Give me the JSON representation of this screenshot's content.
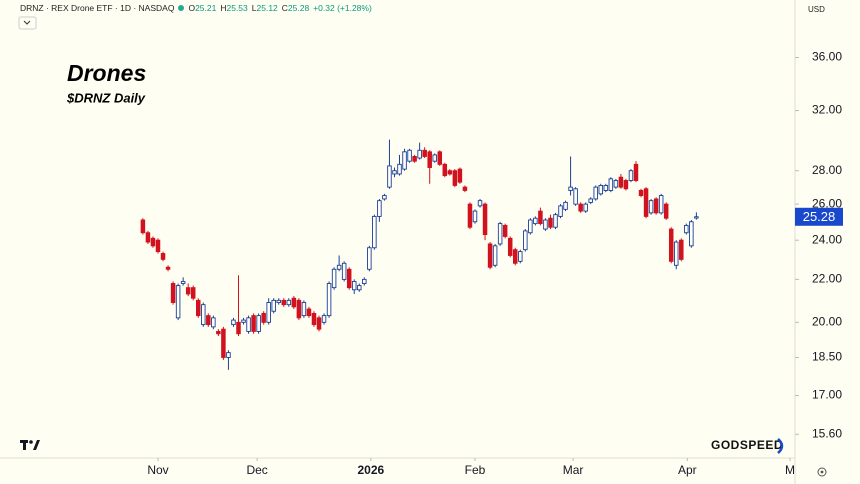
{
  "header": {
    "symbol": "DRNZ · REX Drone ETF · 1D · NASDAQ",
    "ohlc_labels": [
      "O",
      "H",
      "L",
      "C"
    ],
    "change": "+0.32 (+1.28%)",
    "currency": "USD"
  },
  "annotations": {
    "title": "Drones",
    "subtitle": "$DRNZ Daily",
    "watermark": "GODSPEED"
  },
  "chart_data": {
    "type": "candlestick",
    "log_scale": true,
    "up_color": "#1c3f94",
    "down_color": "#d1121f",
    "x": [
      0,
      1,
      2,
      3,
      4,
      5,
      6,
      7,
      8,
      9,
      10,
      11,
      12,
      13,
      14,
      15,
      16,
      17,
      18,
      19,
      20,
      21,
      22,
      23,
      24,
      25,
      26,
      27,
      28,
      29,
      30,
      31,
      32,
      33,
      34,
      35,
      36,
      37,
      38,
      39,
      40,
      41,
      42,
      43,
      44,
      45,
      46,
      47,
      48,
      49,
      50,
      51,
      52,
      53,
      54,
      55,
      56,
      57,
      58,
      59,
      60,
      61,
      62,
      63,
      64,
      65,
      66,
      67,
      68,
      69,
      70,
      71,
      72,
      73,
      74,
      75,
      76,
      77,
      78,
      79,
      80,
      81,
      82,
      83,
      84,
      85,
      86,
      87,
      88,
      89,
      90,
      91,
      92,
      93,
      94,
      95,
      96,
      97,
      98,
      99,
      100,
      101,
      102,
      103,
      104,
      105,
      106,
      107,
      108,
      109,
      110
    ],
    "open": [
      25.1,
      24.4,
      24.1,
      24.0,
      23.3,
      22.6,
      21.8,
      20.2,
      21.8,
      21.6,
      21.6,
      21.0,
      19.9,
      20.3,
      19.8,
      19.6,
      19.7,
      18.5,
      19.9,
      20.0,
      20.0,
      19.6,
      20.3,
      19.6,
      20.4,
      20.0,
      20.5,
      20.9,
      21.0,
      20.8,
      21.1,
      21.0,
      20.3,
      20.6,
      20.4,
      20.2,
      20.0,
      20.3,
      21.6,
      22.5,
      22.0,
      22.5,
      21.5,
      21.5,
      21.8,
      22.5,
      23.6,
      25.3,
      26.3,
      27.0,
      27.8,
      27.8,
      28.1,
      28.6,
      28.9,
      28.8,
      29.3,
      29.2,
      28.6,
      29.2,
      28.4,
      28.0,
      28.0,
      28.1,
      27.0,
      26.0,
      25.0,
      25.9,
      26.0,
      23.8,
      22.7,
      23.8,
      24.8,
      24.1,
      23.5,
      22.9,
      23.5,
      24.4,
      24.9,
      25.6,
      24.6,
      25.2,
      24.7,
      25.3,
      25.7,
      26.8,
      26.0,
      26.0,
      25.6,
      26.1,
      26.3,
      26.6,
      26.8,
      26.8,
      27.0,
      27.6,
      27.4,
      27.4,
      28.4,
      26.8,
      26.9,
      25.5,
      26.3,
      25.5,
      26.0,
      24.6,
      22.7,
      24.0,
      24.4,
      23.7,
      25.21
    ],
    "high": [
      25.2,
      24.5,
      24.2,
      24.1,
      23.4,
      22.7,
      21.9,
      21.8,
      22.1,
      21.8,
      21.7,
      21.1,
      20.9,
      20.4,
      20.3,
      19.7,
      19.8,
      18.8,
      20.2,
      22.2,
      20.2,
      20.3,
      20.4,
      20.4,
      20.5,
      21.1,
      21.1,
      21.1,
      21.1,
      21.1,
      21.2,
      21.1,
      21.0,
      20.7,
      20.5,
      20.3,
      20.4,
      21.9,
      22.6,
      23.2,
      22.9,
      22.6,
      22.0,
      21.8,
      22.1,
      23.7,
      25.4,
      26.3,
      26.6,
      30.0,
      28.2,
      29.0,
      29.4,
      29.4,
      29.0,
      29.8,
      29.5,
      29.3,
      29.1,
      29.3,
      28.5,
      28.1,
      28.1,
      28.2,
      27.1,
      26.1,
      25.7,
      26.3,
      26.1,
      23.9,
      23.8,
      25.0,
      24.9,
      24.2,
      23.6,
      23.5,
      24.6,
      25.2,
      25.3,
      25.8,
      25.2,
      25.4,
      25.5,
      26.0,
      26.2,
      28.9,
      27.0,
      26.1,
      26.1,
      26.4,
      27.1,
      27.2,
      27.2,
      27.6,
      27.5,
      27.8,
      27.5,
      28.1,
      28.6,
      26.9,
      27.0,
      26.3,
      26.4,
      26.6,
      26.1,
      24.7,
      24.0,
      24.1,
      24.9,
      25.1,
      25.53
    ],
    "low": [
      24.3,
      23.8,
      23.6,
      23.3,
      22.9,
      22.4,
      20.8,
      20.1,
      21.7,
      21.2,
      21.0,
      20.2,
      19.8,
      19.8,
      19.7,
      19.4,
      18.4,
      18.0,
      19.8,
      19.4,
      19.9,
      19.5,
      19.5,
      19.5,
      19.9,
      19.9,
      20.4,
      20.8,
      20.7,
      20.7,
      20.6,
      20.1,
      20.2,
      20.2,
      19.8,
      19.6,
      19.9,
      20.2,
      21.5,
      22.4,
      21.9,
      21.5,
      21.3,
      21.4,
      21.7,
      22.4,
      23.5,
      25.0,
      26.2,
      26.9,
      27.6,
      27.7,
      28.0,
      28.5,
      28.5,
      28.7,
      28.8,
      27.2,
      28.5,
      28.3,
      27.6,
      27.7,
      27.0,
      27.2,
      26.7,
      24.6,
      24.9,
      25.8,
      24.0,
      22.5,
      22.6,
      23.7,
      24.1,
      23.1,
      22.7,
      22.8,
      23.4,
      24.3,
      24.8,
      24.8,
      24.5,
      24.6,
      24.6,
      25.2,
      25.6,
      26.5,
      25.9,
      25.5,
      25.5,
      26.0,
      26.2,
      26.5,
      26.7,
      26.7,
      26.9,
      26.9,
      26.8,
      27.3,
      27.3,
      26.4,
      25.2,
      25.4,
      25.4,
      25.4,
      25.1,
      22.8,
      22.5,
      22.9,
      24.3,
      23.6,
      25.12
    ],
    "close": [
      24.4,
      23.9,
      23.7,
      23.4,
      23.0,
      22.5,
      20.9,
      21.7,
      21.9,
      21.3,
      21.1,
      20.3,
      20.8,
      19.9,
      20.2,
      19.5,
      18.5,
      18.7,
      20.1,
      19.5,
      20.1,
      20.2,
      19.6,
      20.3,
      20.0,
      20.9,
      21.0,
      21.0,
      20.8,
      21.0,
      20.7,
      20.2,
      20.9,
      20.3,
      19.9,
      19.7,
      20.3,
      21.8,
      22.5,
      22.7,
      22.8,
      21.6,
      21.9,
      21.7,
      22.0,
      23.6,
      25.3,
      26.2,
      26.5,
      28.3,
      28.0,
      28.4,
      29.2,
      29.3,
      28.6,
      29.3,
      28.9,
      28.2,
      29.0,
      28.4,
      27.7,
      27.8,
      27.1,
      27.3,
      26.8,
      24.7,
      25.6,
      26.2,
      24.3,
      22.6,
      23.7,
      24.9,
      24.2,
      23.2,
      22.8,
      23.4,
      24.5,
      25.1,
      25.2,
      24.9,
      25.1,
      24.7,
      25.4,
      25.9,
      26.1,
      27.0,
      26.9,
      25.6,
      26.0,
      26.3,
      27.0,
      27.1,
      27.1,
      27.5,
      27.4,
      27.0,
      26.9,
      28.0,
      27.4,
      26.5,
      25.3,
      26.2,
      25.5,
      26.5,
      25.2,
      22.9,
      23.9,
      23.0,
      24.8,
      25.0,
      25.28
    ],
    "xlim": [
      -28.4,
      129.6
    ],
    "xticks": [
      {
        "value": 3.0,
        "label": "Nov"
      },
      {
        "value": 22.7,
        "label": "Dec"
      },
      {
        "value": 45.3,
        "label": "2026"
      },
      {
        "value": 66.0,
        "label": "Feb"
      },
      {
        "value": 85.5,
        "label": "Mar"
      },
      {
        "value": 108.2,
        "label": "Apr"
      },
      {
        "value": 128.6,
        "label": "M"
      }
    ],
    "ylim": [
      14.8,
      40.9
    ],
    "yticks": [
      {
        "value": 15.6,
        "label": "15.60"
      },
      {
        "value": 17,
        "label": "17.00"
      },
      {
        "value": 18.5,
        "label": "18.50"
      },
      {
        "value": 20,
        "label": "20.00"
      },
      {
        "value": 22,
        "label": "22.00"
      },
      {
        "value": 24,
        "label": "24.00"
      },
      {
        "value": 26,
        "label": "26.00"
      },
      {
        "value": 28,
        "label": "28.00"
      },
      {
        "value": 32,
        "label": "32.00"
      },
      {
        "value": 36,
        "label": "36.00"
      }
    ],
    "price_label_color": "#1848cc"
  }
}
